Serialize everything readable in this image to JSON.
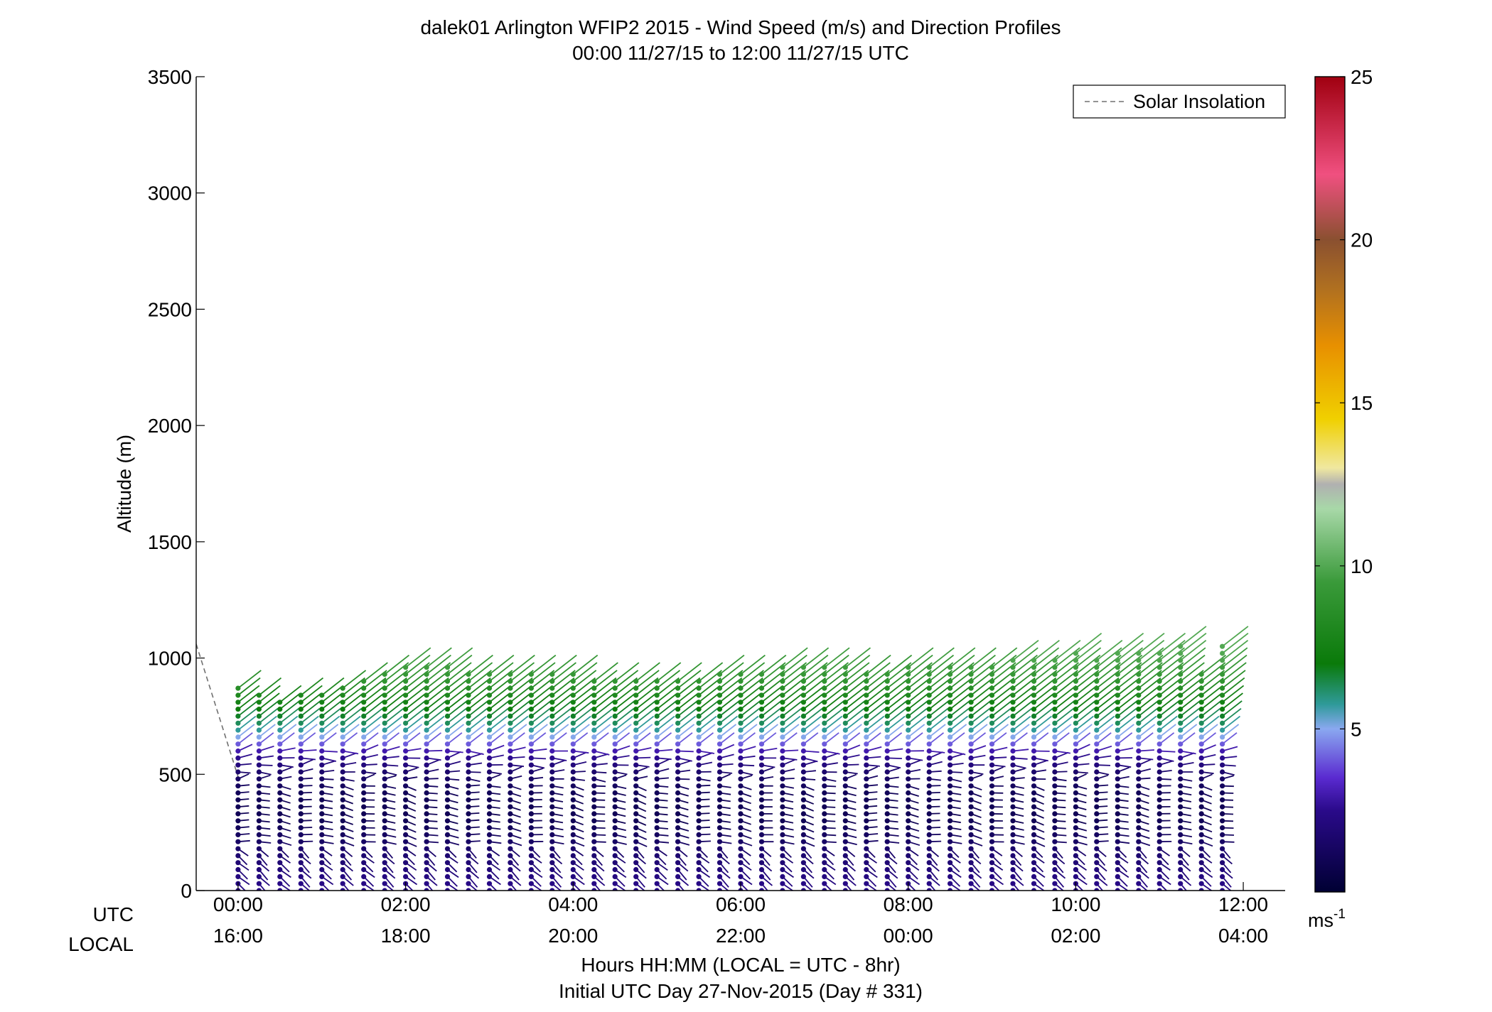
{
  "chart_data": {
    "type": "scatter",
    "title": "dalek01 Arlington WFIP2 2015 - Wind Speed (m/s) and Direction Profiles",
    "subtitle": "00:00 11/27/15 to 12:00 11/27/15  UTC",
    "ylabel": "Altitude (m)",
    "ylim": [
      0,
      3500
    ],
    "y_ticks": [
      "0",
      "500",
      "1000",
      "1500",
      "2000",
      "2500",
      "3000",
      "3500"
    ],
    "y_tick_values": [
      0,
      500,
      1000,
      1500,
      2000,
      2500,
      3000,
      3500
    ],
    "x_range_hours": [
      -0.5,
      12.5
    ],
    "x_row_labels": {
      "utc": "UTC",
      "local": "LOCAL"
    },
    "x_ticks_utc": [
      "00:00",
      "02:00",
      "04:00",
      "06:00",
      "08:00",
      "10:00",
      "12:00"
    ],
    "x_ticks_local": [
      "16:00",
      "18:00",
      "20:00",
      "22:00",
      "00:00",
      "02:00",
      "04:00"
    ],
    "x_tick_hours": [
      0,
      2,
      4,
      6,
      8,
      10,
      12
    ],
    "xlabel": "Hours HH:MM  (LOCAL = UTC - 8hr)",
    "xlabel2": "Initial UTC Day 27-Nov-2015 (Day # 331)",
    "legend": {
      "label": "Solar Insolation",
      "position": "top-right"
    },
    "colorbar": {
      "range": [
        0,
        25
      ],
      "ticks": [
        "5",
        "10",
        "15",
        "20",
        "25"
      ],
      "tick_values": [
        5,
        10,
        15,
        20,
        25
      ],
      "unit": "ms",
      "unit_exponent": "-1",
      "colors": [
        "#000033",
        "#2a0a8a",
        "#5a2ad0",
        "#8aa8f0",
        "#2f9a9a",
        "#0a7a0a",
        "#3a9a3a",
        "#a8d8a8",
        "#b0b0b0",
        "#f0e8a0",
        "#f0d000",
        "#e89000",
        "#b07020",
        "#8a5030",
        "#f05080",
        "#a00010"
      ],
      "color_stops": [
        0,
        0.1,
        0.14,
        0.2,
        0.23,
        0.28,
        0.38,
        0.47,
        0.5,
        0.52,
        0.58,
        0.67,
        0.74,
        0.8,
        0.88,
        1.0
      ]
    },
    "grid": false,
    "insolation_curve": [
      [
        -0.5,
        1060
      ],
      [
        0.0,
        490
      ]
    ],
    "profile_times_hours": [
      0.0,
      0.25,
      0.5,
      0.75,
      1.0,
      1.25,
      1.5,
      1.75,
      2.0,
      2.25,
      2.5,
      2.75,
      3.0,
      3.25,
      3.5,
      3.75,
      4.0,
      4.25,
      4.5,
      4.75,
      5.0,
      5.25,
      5.5,
      5.75,
      6.0,
      6.25,
      6.5,
      6.75,
      7.0,
      7.25,
      7.5,
      7.75,
      8.0,
      8.25,
      8.5,
      8.75,
      9.0,
      9.25,
      9.5,
      9.75,
      10.0,
      10.25,
      10.5,
      10.75,
      11.0,
      11.25,
      11.5,
      11.75
    ],
    "profile_top_altitude_m": [
      870,
      840,
      820,
      850,
      860,
      880,
      900,
      930,
      980,
      980,
      960,
      950,
      930,
      940,
      930,
      940,
      930,
      920,
      920,
      920,
      910,
      920,
      920,
      930,
      950,
      950,
      960,
      970,
      980,
      960,
      950,
      950,
      980,
      960,
      960,
      970,
      980,
      990,
      1000,
      1000,
      1020,
      1010,
      1030,
      1040,
      1040,
      1070,
      950,
      1050
    ],
    "speed_profile_by_altitude": [
      {
        "altitude_m": 0,
        "speed_ms": 2.5
      },
      {
        "altitude_m": 100,
        "speed_ms": 2.0
      },
      {
        "altitude_m": 200,
        "speed_ms": 1.5
      },
      {
        "altitude_m": 300,
        "speed_ms": 1.0
      },
      {
        "altitude_m": 400,
        "speed_ms": 1.0
      },
      {
        "altitude_m": 500,
        "speed_ms": 1.5
      },
      {
        "altitude_m": 600,
        "speed_ms": 3.0
      },
      {
        "altitude_m": 650,
        "speed_ms": 4.8
      },
      {
        "altitude_m": 700,
        "speed_ms": 6.0
      },
      {
        "altitude_m": 800,
        "speed_ms": 7.5
      },
      {
        "altitude_m": 900,
        "speed_ms": 9.0
      },
      {
        "altitude_m": 1000,
        "speed_ms": 10.0
      }
    ],
    "altitude_spacing_m": 30
  }
}
